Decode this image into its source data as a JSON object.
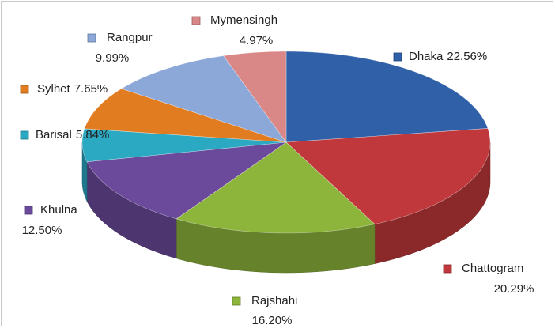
{
  "chart_data": {
    "type": "pie",
    "categories": [
      "Dhaka",
      "Chattogram",
      "Rajshahi",
      "Khulna",
      "Barisal",
      "Sylhet",
      "Rangpur",
      "Mymensingh"
    ],
    "values": [
      22.56,
      20.29,
      16.2,
      12.5,
      5.84,
      7.65,
      9.99,
      4.97
    ],
    "value_labels": [
      "22.56%",
      "20.29%",
      "16.20%",
      "12.50%",
      "5.84%",
      "7.65%",
      "9.99%",
      "4.97%"
    ],
    "colors": [
      "#2f60a8",
      "#c0383b",
      "#8db43b",
      "#6b4a9b",
      "#2ba8c2",
      "#e27c21",
      "#8ca8d8",
      "#d98787"
    ]
  }
}
